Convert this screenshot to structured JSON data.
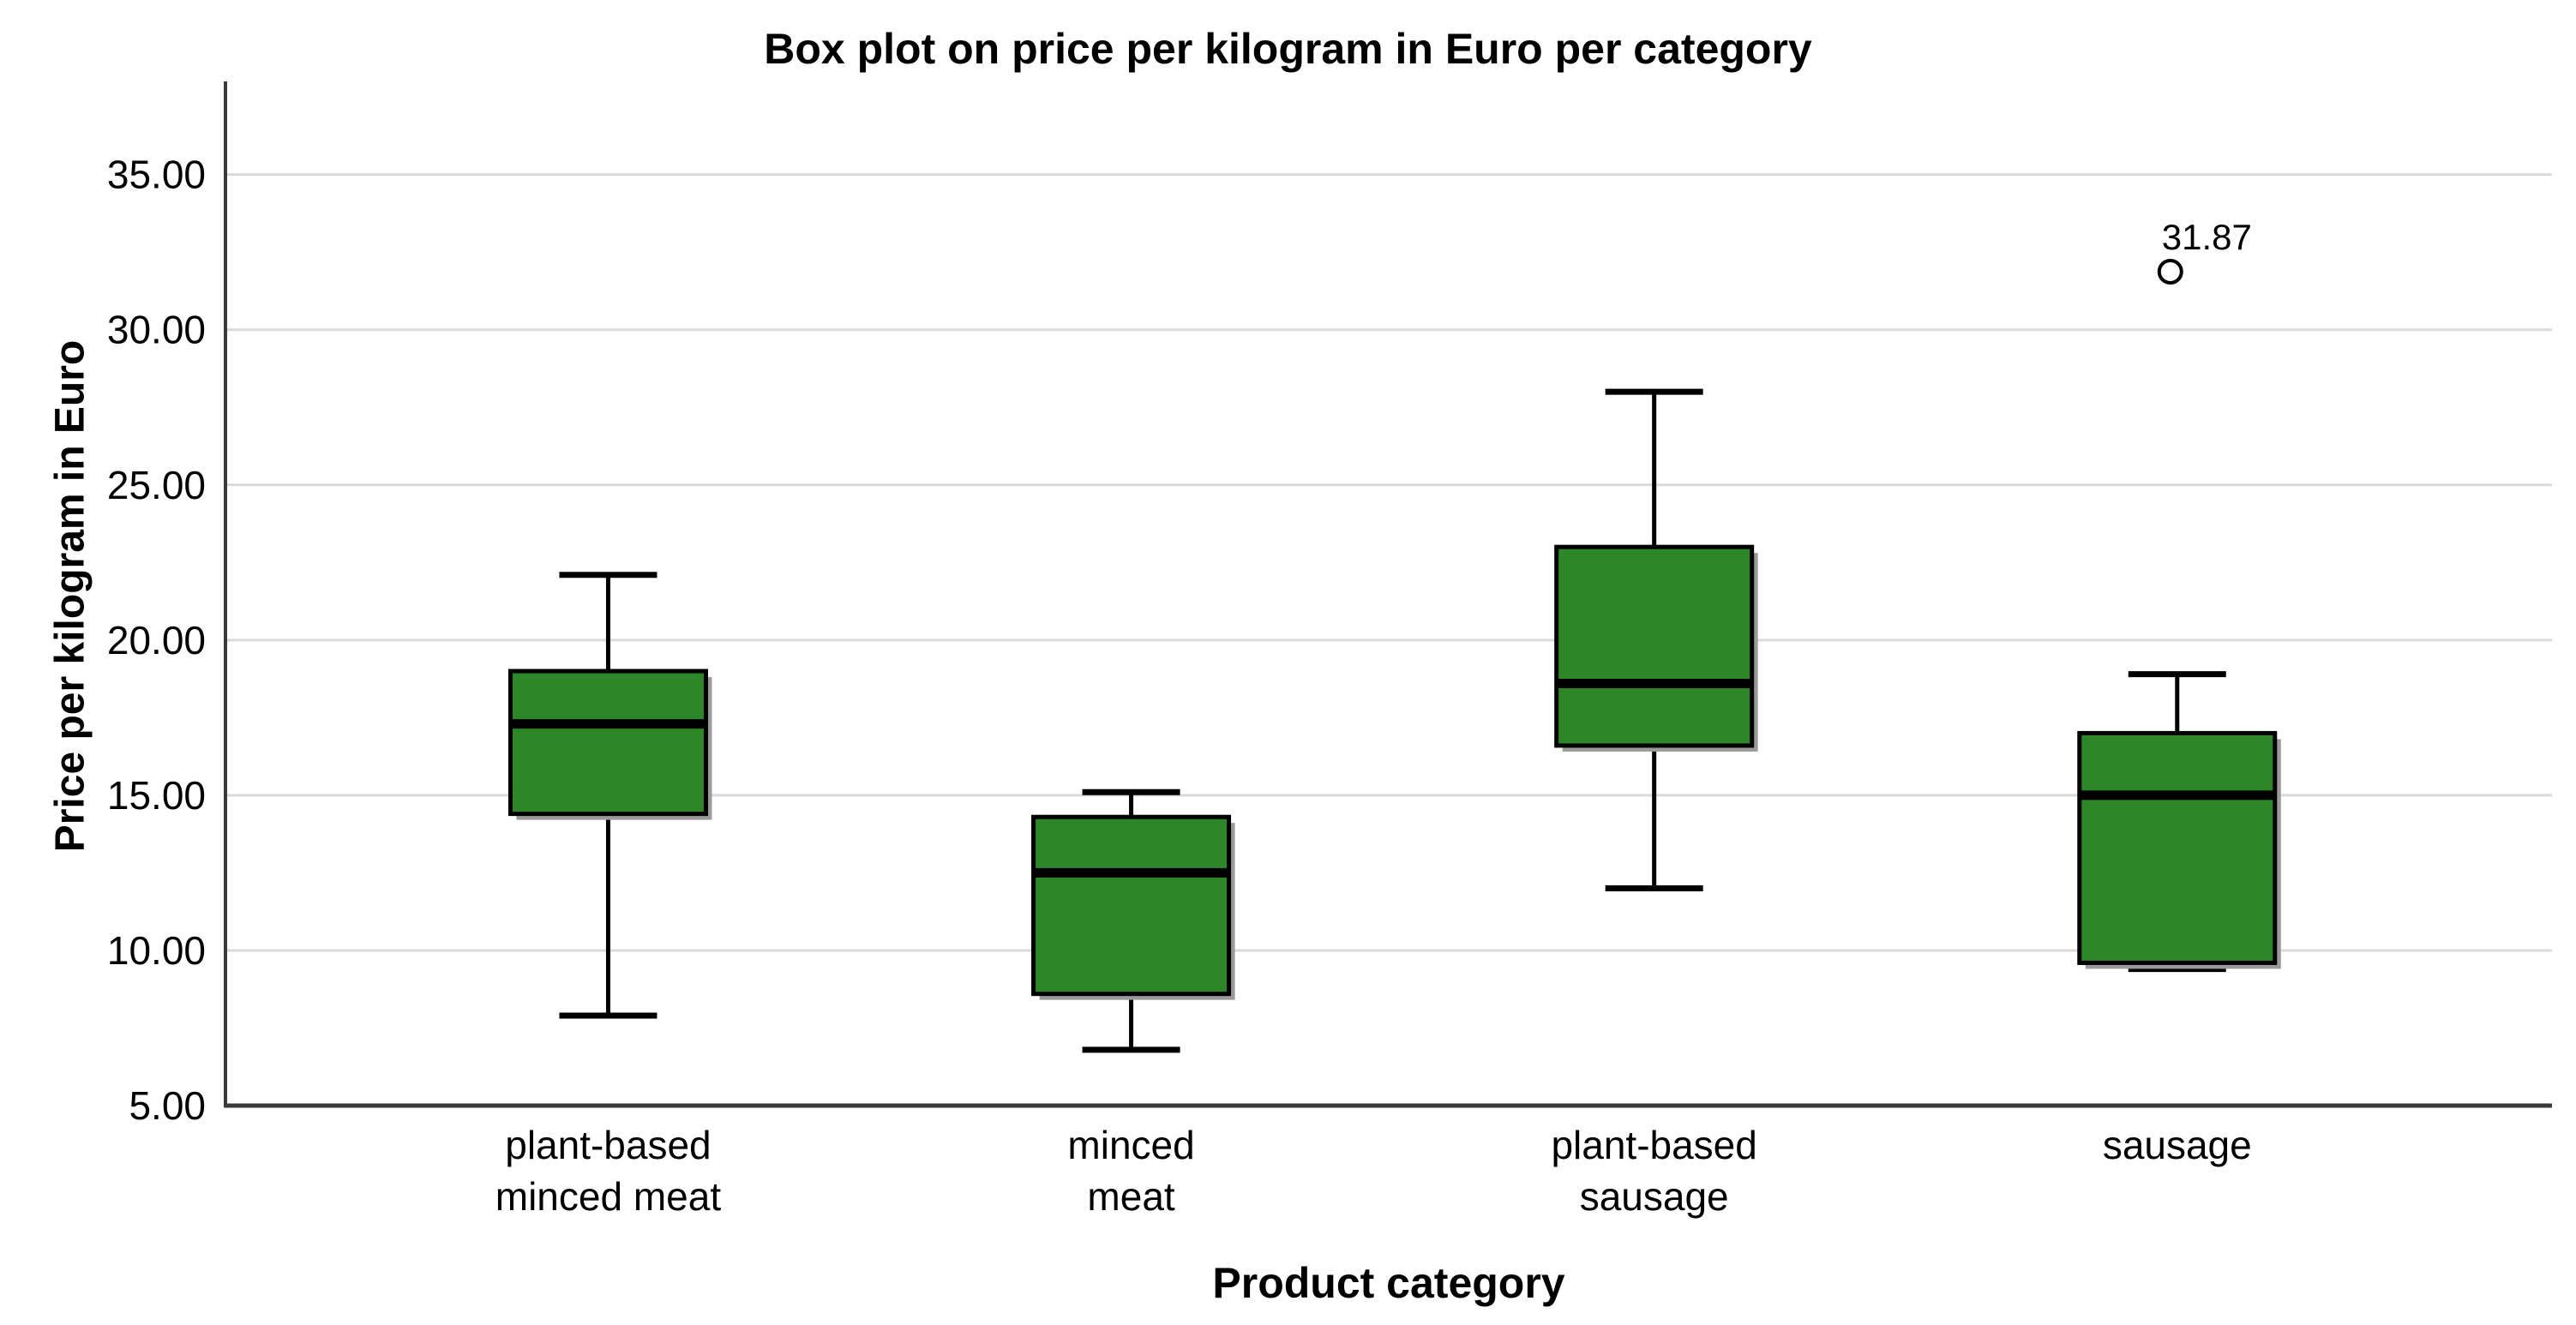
{
  "title": "Box plot on price per kilogram in Euro per category",
  "x_axis": {
    "title": "Product category"
  },
  "y_axis": {
    "title": "Price per kilogram in Euro",
    "tick_values": [
      5,
      10,
      15,
      20,
      25,
      30,
      35
    ],
    "tick_labels": [
      "5.00",
      "10.00",
      "15.00",
      "20.00",
      "25.00",
      "30.00",
      "35.00"
    ]
  },
  "chart_data": {
    "type": "boxplot",
    "title": "Box plot on price per kilogram in Euro per category",
    "xlabel": "Product category",
    "ylabel": "Price per kilogram in Euro",
    "ylim": [
      5,
      38
    ],
    "grid": true,
    "categories": [
      "plant-based minced meat",
      "minced meat",
      "plant-based sausage",
      "sausage"
    ],
    "category_label_lines": [
      [
        "plant-based",
        "minced meat"
      ],
      [
        "minced",
        "meat"
      ],
      [
        "plant-based",
        "sausage"
      ],
      [
        "sausage"
      ]
    ],
    "series": [
      {
        "name": "plant-based minced meat",
        "min": 7.9,
        "q1": 14.4,
        "median": 17.3,
        "q3": 19.0,
        "max": 22.1,
        "outliers": []
      },
      {
        "name": "minced meat",
        "min": 6.8,
        "q1": 8.6,
        "median": 12.5,
        "q3": 14.3,
        "max": 15.1,
        "outliers": []
      },
      {
        "name": "plant-based sausage",
        "min": 12.0,
        "q1": 16.6,
        "median": 18.6,
        "q3": 23.0,
        "max": 28.0,
        "outliers": []
      },
      {
        "name": "sausage",
        "min": 9.4,
        "q1": 9.6,
        "median": 15.0,
        "q3": 17.0,
        "max": 18.9,
        "outliers": [
          {
            "value": 31.87,
            "label": "31.87"
          }
        ]
      }
    ],
    "colors": {
      "box_fill": "#2d8627",
      "box_border": "#000000",
      "box_shadow": "#9a9a9a",
      "median": "#000000",
      "whisker": "#000000",
      "gridline": "#d9d9d9",
      "axis": "#3a3a3a",
      "outlier_stroke": "#000000",
      "outlier_fill": "#ffffff",
      "background": "#ffffff"
    }
  }
}
